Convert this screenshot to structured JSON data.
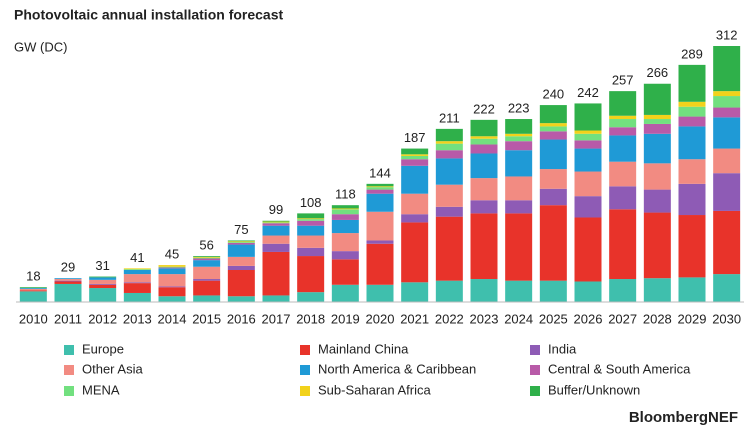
{
  "chart_data": {
    "type": "stacked_bar",
    "title": "Photovoltaic annual installation forecast",
    "subtitle": "GW (DC)",
    "source": "BloombergNEF",
    "categories": [
      "2010",
      "2011",
      "2012",
      "2013",
      "2014",
      "2015",
      "2016",
      "2017",
      "2018",
      "2019",
      "2020",
      "2021",
      "2022",
      "2023",
      "2024",
      "2025",
      "2026",
      "2027",
      "2028",
      "2029",
      "2030"
    ],
    "totals": [
      18,
      29,
      31,
      41,
      45,
      56,
      75,
      99,
      108,
      118,
      144,
      187,
      211,
      222,
      223,
      240,
      242,
      257,
      266,
      289,
      312
    ],
    "series": [
      {
        "name": "Europe",
        "color": "#3fbfad",
        "values": [
          13,
          22,
          17,
          11,
          7,
          8,
          7,
          8,
          12,
          21,
          21,
          24,
          26,
          28,
          26,
          26,
          25,
          28,
          29,
          30,
          34
        ]
      },
      {
        "name": "Mainland China",
        "color": "#e8332a",
        "values": [
          1,
          3,
          4,
          12,
          11,
          18,
          32,
          53,
          44,
          31,
          50,
          73,
          78,
          80,
          82,
          92,
          78,
          85,
          80,
          76,
          77
        ]
      },
      {
        "name": "India",
        "color": "#8e5bb5",
        "values": [
          0,
          1,
          1,
          1,
          1,
          2,
          5,
          10,
          10,
          10,
          4,
          10,
          12,
          16,
          16,
          20,
          26,
          28,
          28,
          38,
          46
        ]
      },
      {
        "name": "Other Asia",
        "color": "#f28b82",
        "values": [
          2,
          2,
          5,
          10,
          15,
          15,
          11,
          10,
          15,
          22,
          35,
          25,
          27,
          27,
          29,
          24,
          30,
          30,
          32,
          30,
          30
        ]
      },
      {
        "name": "North America & Caribbean",
        "color": "#1f9ad6",
        "values": [
          1,
          1,
          3,
          5,
          7,
          8,
          15,
          12,
          12,
          16,
          22,
          34,
          32,
          30,
          32,
          36,
          28,
          32,
          36,
          40,
          38
        ]
      },
      {
        "name": "Central & South America",
        "color": "#b85aa8",
        "values": [
          0,
          0,
          0,
          0,
          1,
          2,
          2,
          3,
          6,
          7,
          5,
          8,
          10,
          11,
          11,
          10,
          10,
          10,
          12,
          12,
          12
        ]
      },
      {
        "name": "MENA",
        "color": "#72e07f",
        "values": [
          0,
          0,
          0,
          1,
          1,
          1,
          1,
          1,
          2,
          6,
          3,
          4,
          8,
          7,
          6,
          6,
          8,
          10,
          6,
          12,
          14
        ]
      },
      {
        "name": "Sub-Saharan Africa",
        "color": "#f2d21b",
        "values": [
          0,
          0,
          0,
          1,
          2,
          1,
          1,
          1,
          1,
          1,
          1,
          2,
          3,
          3,
          3,
          4,
          4,
          4,
          5,
          6,
          6
        ]
      },
      {
        "name": "Buffer/Unknown",
        "color": "#2fb04a",
        "values": [
          1,
          0,
          1,
          0,
          0,
          1,
          1,
          1,
          6,
          4,
          3,
          7,
          15,
          20,
          18,
          22,
          33,
          30,
          38,
          45,
          55
        ]
      }
    ]
  }
}
